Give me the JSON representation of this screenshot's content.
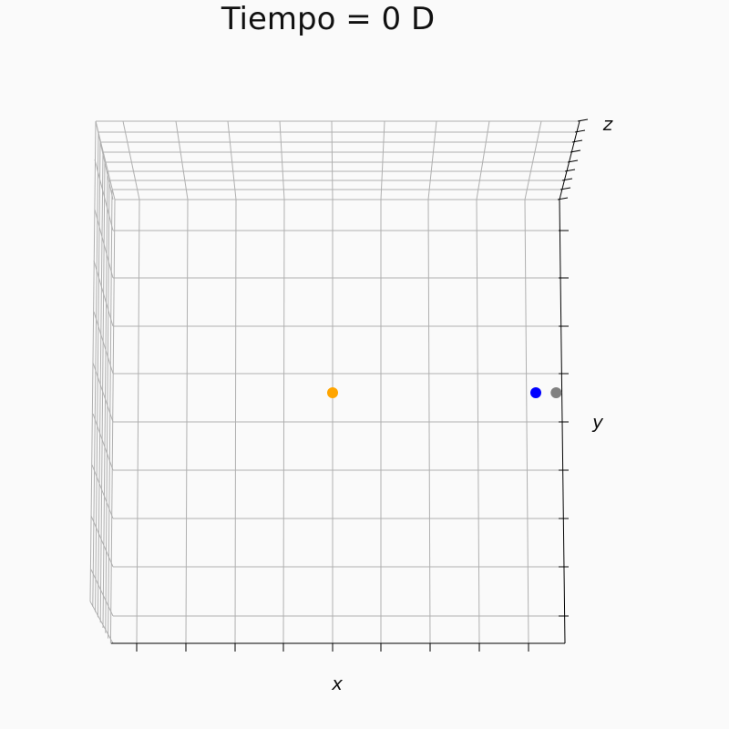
{
  "chart_data": {
    "type": "scatter",
    "projection": "3d",
    "title": "Tiempo = 0 D",
    "xlabel": "x",
    "ylabel": "y",
    "zlabel": "z",
    "grid": true,
    "tick_labels_visible": false,
    "series": [
      {
        "color": "#ffa500",
        "x": 0.0,
        "y": 0.0,
        "z": 0.0
      },
      {
        "color": "#0000ff",
        "x": 1.0,
        "y": 0.0,
        "z": 0.0
      },
      {
        "color": "#808080",
        "x": 1.1,
        "y": 0.0,
        "z": 0.0
      }
    ]
  }
}
